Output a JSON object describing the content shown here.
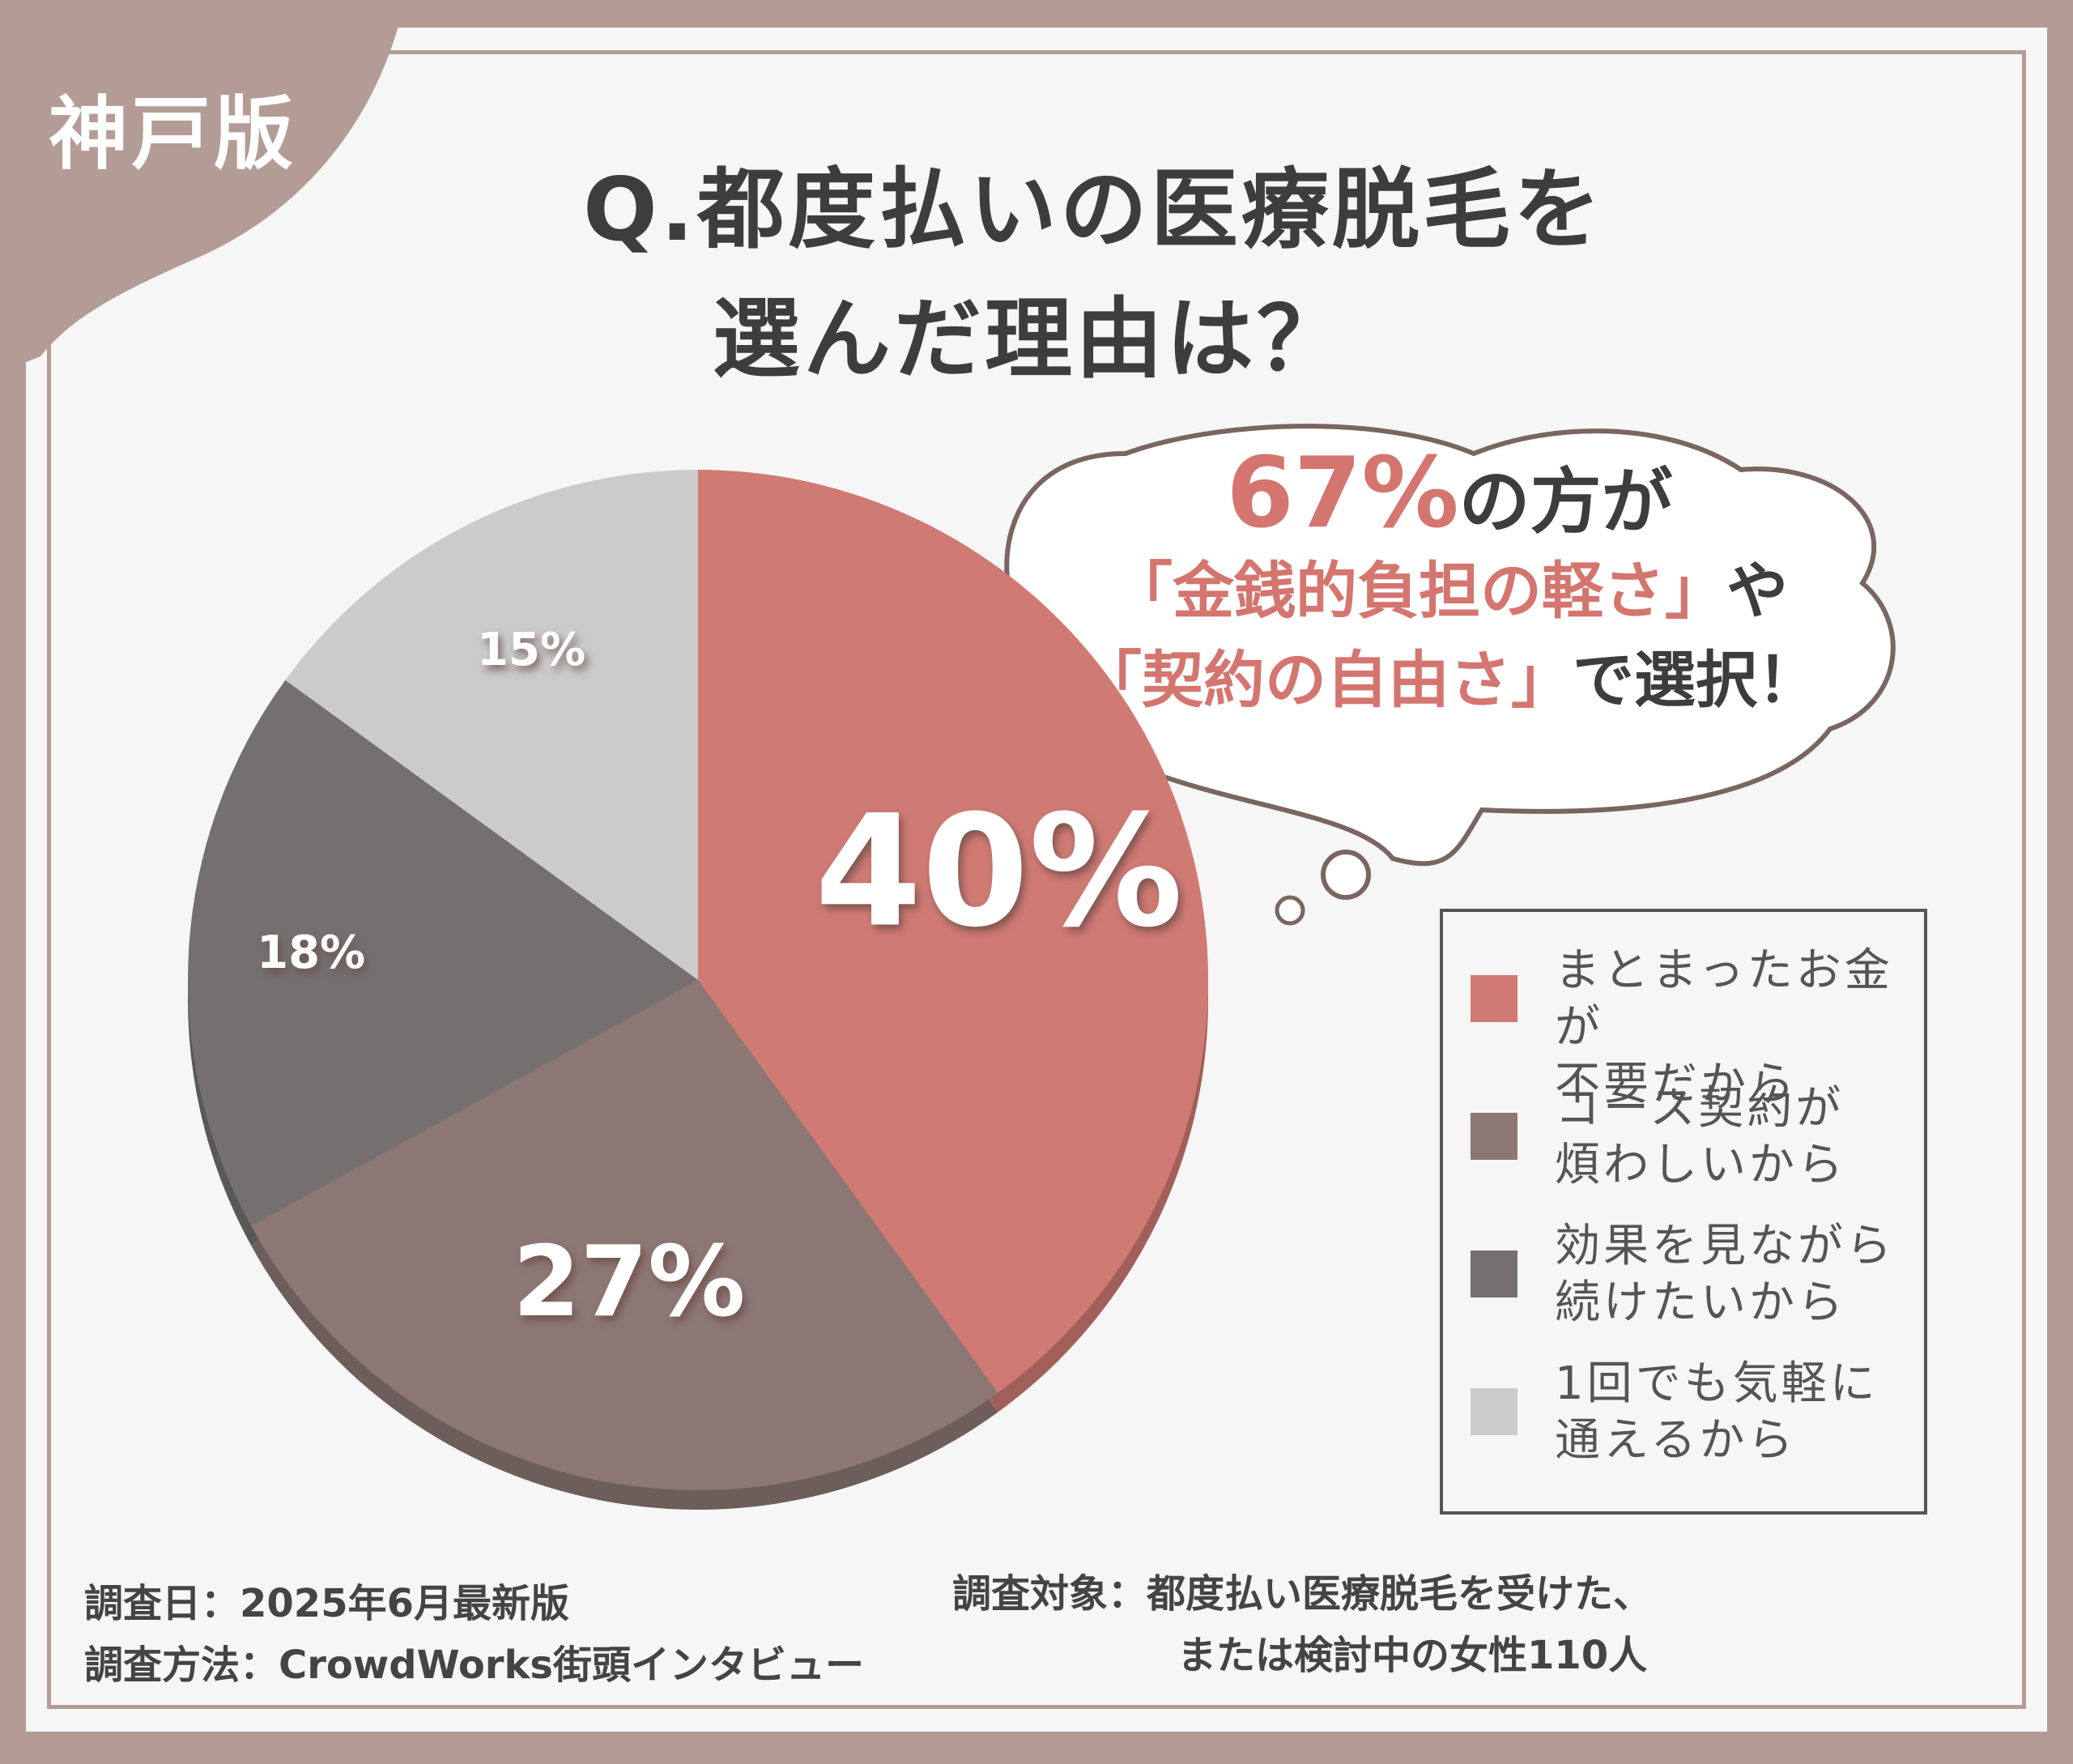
{
  "region_label": "神戸版",
  "title": {
    "line1": "Q.都度払いの医療脱毛を",
    "line2": "選んだ理由は？"
  },
  "callout": {
    "big": "67%",
    "line1_rest": "の方が",
    "line2_accent": "「金銭的負担の軽さ」",
    "line2_rest": "や",
    "line3_accent": "「契約の自由さ」",
    "line3_rest": "で選択！"
  },
  "footer": {
    "date": "調査日：2025年6月最新版",
    "method": "調査方法：CrowdWorks街頭インタビュー",
    "target_line1": "調査対象：都度払い医療脱毛を受けた、",
    "target_line2": "または検討中の女性110人"
  },
  "chart_data": {
    "type": "pie",
    "unit": "%",
    "slices": [
      {
        "label": "まとまったお金が不要だから",
        "label_lines": [
          "まとまったお金が",
          "不要だから"
        ],
        "value": 40,
        "display": "40%",
        "color": "#d07a74"
      },
      {
        "label": "コース契約が煩わしいから",
        "label_lines": [
          "コース契約が",
          "煩わしいから"
        ],
        "value": 27,
        "display": "27%",
        "color": "#8c7775"
      },
      {
        "label": "効果を見ながら続けたいから",
        "label_lines": [
          "効果を見ながら",
          "続けたいから"
        ],
        "value": 18,
        "display": "18%",
        "color": "#747070"
      },
      {
        "label": "1回でも気軽に通えるから",
        "label_lines": [
          "1回でも気軽に",
          "通えるから"
        ],
        "value": 15,
        "display": "15%",
        "color": "#cbcbcb"
      }
    ],
    "start_angle": "12 o'clock",
    "direction": "clockwise",
    "legend_position": "right"
  }
}
